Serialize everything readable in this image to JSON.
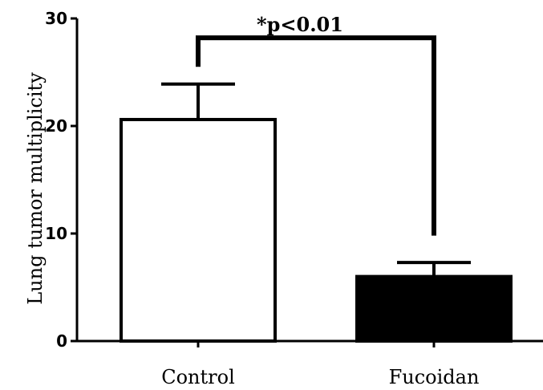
{
  "chart_data": {
    "type": "bar",
    "categories": [
      "Control",
      "Fucoidan"
    ],
    "values": [
      20.6,
      6.0
    ],
    "errors": [
      3.3,
      1.3
    ],
    "bar_colors": [
      "#ffffff",
      "#000000"
    ],
    "ylabel": "Lung tumor multiplicity",
    "xlabel": "",
    "ylim": [
      0,
      30
    ],
    "yticks": [
      0,
      10,
      20,
      30
    ],
    "grid": false,
    "annotation": {
      "text": "*p<0.01",
      "bracket_level": 28.2,
      "left_end": 25.5,
      "right_end": 9.8
    }
  }
}
